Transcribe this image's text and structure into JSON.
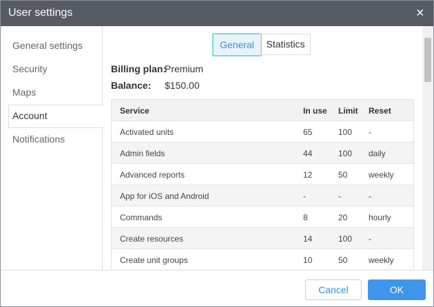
{
  "dialog": {
    "title": "User settings",
    "close": "×"
  },
  "nav": [
    "General settings",
    "Security",
    "Maps",
    "Account",
    "Notifications"
  ],
  "tabs": [
    "General",
    "Statistics"
  ],
  "billing": {
    "plan_label": "Billing plan:",
    "plan": "Premium",
    "balance_label": "Balance:",
    "balance": "$150.00"
  },
  "table": {
    "header": [
      "Service",
      "In use",
      "Limit",
      "Reset"
    ],
    "rows": [
      [
        "Activated units",
        "65",
        "100",
        "-"
      ],
      [
        "Admin fields",
        "44",
        "100",
        "daily"
      ],
      [
        "Advanced reports",
        "12",
        "50",
        "weekly"
      ],
      [
        "App for iOS and Android",
        "-",
        "-",
        "-"
      ],
      [
        "Commands",
        "8",
        "20",
        "hourly"
      ],
      [
        "Create resources",
        "14",
        "100",
        "-"
      ],
      [
        "Create unit groups",
        "10",
        "50",
        "weekly"
      ]
    ]
  },
  "buttons": [
    "Cancel",
    "OK"
  ]
}
